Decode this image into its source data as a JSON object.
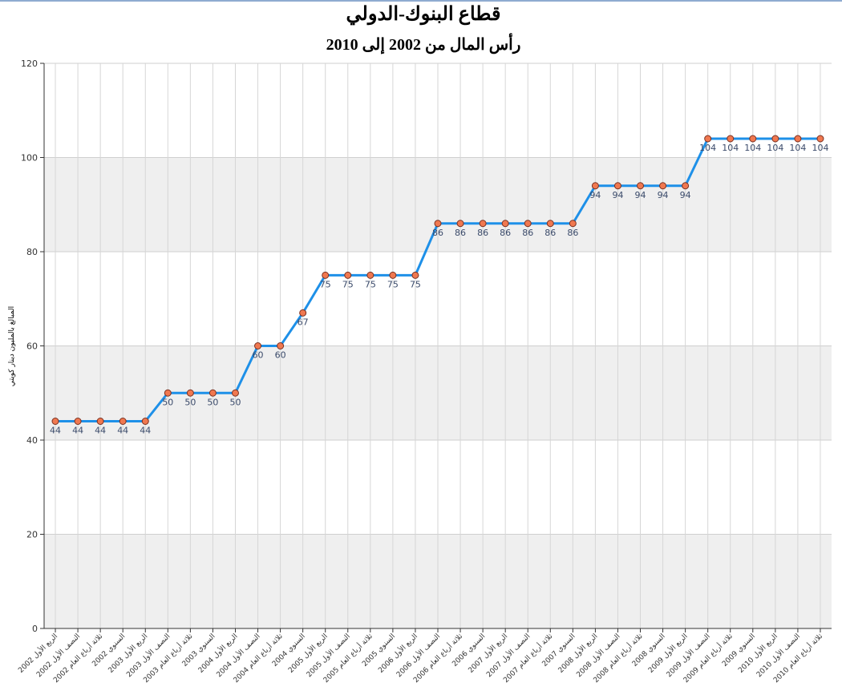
{
  "chart_data": {
    "type": "line",
    "title": "قطاع البنوك-الدولي",
    "subtitle": "رأس المال من 2002 إلى 2010",
    "y_label": "المبالغ بالمليون دينار كويتي",
    "categories": [
      "الربع الأول 2002",
      "النصف الأول 2002",
      "ثلاثة أرباع العام 2002",
      "السنوي 2002",
      "الربع الأول 2003",
      "النصف الأول 2003",
      "ثلاثة أرباع العام 2003",
      "السنوي 2003",
      "الربع الأول 2004",
      "النصف الأول 2004",
      "ثلاثة أرباع العام 2004",
      "السنوي 2004",
      "الربع الأول 2005",
      "النصف الأول 2005",
      "ثلاثة أرباع العام 2005",
      "السنوي 2005",
      "الربع الأول 2006",
      "النصف الأول 2006",
      "ثلاثة أرباع العام 2006",
      "السنوي 2006",
      "الربع الأول 2007",
      "النصف الأول 2007",
      "ثلاثة أرباع العام 2007",
      "السنوي 2007",
      "الربع الأول 2008",
      "النصف الأول 2008",
      "ثلاثة أرباع العام 2008",
      "السنوي 2008",
      "الربع الأول 2009",
      "النصف الأول 2009",
      "ثلاثة أرباع العام 2009",
      "السنوي 2009",
      "الربع الأول 2010",
      "النصف الأول 2010",
      "ثلاثة أرباع العام 2010"
    ],
    "series": [
      {
        "name": "رأس المال",
        "color": "#1e90e8",
        "marker_color": "#f07850",
        "values": [
          44,
          44,
          44,
          44,
          44,
          50,
          50,
          50,
          50,
          60,
          60,
          67,
          75,
          75,
          75,
          75,
          75,
          86,
          86,
          86,
          86,
          86,
          86,
          86,
          94,
          94,
          94,
          94,
          94,
          104,
          104,
          104,
          104,
          104,
          104
        ]
      }
    ],
    "ylim": [
      0,
      120
    ],
    "yticks": [
      0,
      20,
      40,
      60,
      80,
      100,
      120
    ],
    "grid": true
  }
}
